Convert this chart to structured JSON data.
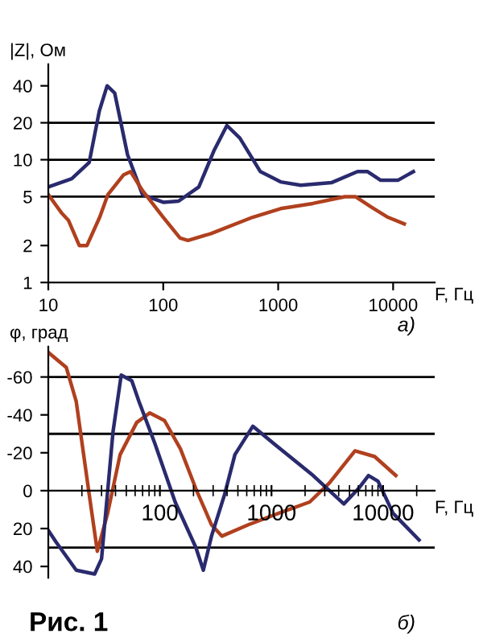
{
  "chart_data": [
    {
      "type": "line",
      "ylabel": "|Z|, Ом",
      "xlabel": "F, Гц",
      "log": "xy",
      "xlim": [
        10,
        23000
      ],
      "ylim": [
        1,
        60
      ],
      "xticks": [
        10,
        100,
        1000,
        10000
      ],
      "yticks": [
        1,
        2,
        5,
        10,
        20,
        40
      ],
      "grid": false,
      "legend": false,
      "marker": "none",
      "line_style": "solid",
      "series": [
        {
          "color": "#2a2a6e",
          "x": [
            10,
            16,
            22.7,
            27.8,
            32.5,
            37.8,
            48.9,
            66,
            100,
            136,
            204,
            278,
            358,
            464,
            700,
            1050,
            1570,
            2900,
            4900,
            6000,
            7800,
            11000,
            15000
          ],
          "values": [
            6,
            7,
            9.5,
            25,
            40,
            35,
            11,
            5.2,
            4.5,
            4.6,
            6,
            12,
            19,
            15,
            8,
            6.6,
            6.2,
            6.5,
            8,
            8,
            6.8,
            6.8,
            8
          ]
        },
        {
          "color": "#b0401e",
          "x": [
            10,
            13,
            15,
            18.6,
            21.7,
            28,
            33,
            45,
            52,
            66,
            100,
            140,
            164,
            260,
            600,
            1050,
            2000,
            3800,
            4700,
            6500,
            9000,
            12500
          ],
          "values": [
            5.2,
            3.7,
            3.2,
            2,
            2,
            3.4,
            5.2,
            7.5,
            8,
            5.6,
            3.4,
            2.3,
            2.2,
            2.5,
            3.4,
            4,
            4.4,
            5,
            5,
            4.1,
            3.4,
            3
          ]
        }
      ],
      "ref_lines": [
        {
          "axis": "y",
          "value": 20,
          "color": "#000000"
        },
        {
          "axis": "y",
          "value": 10,
          "color": "#000000"
        },
        {
          "axis": "y",
          "value": 5,
          "color": "#000000"
        }
      ],
      "annotations": [
        "а)"
      ]
    },
    {
      "type": "line",
      "ylabel": "φ, град",
      "xlabel": "F, Гц",
      "log": "x",
      "xlim": [
        10,
        29000
      ],
      "ylim": [
        46,
        -76
      ],
      "xticks": [
        100,
        1000,
        10000
      ],
      "yticks": [
        -60,
        -40,
        -20,
        0,
        20,
        40
      ],
      "grid": false,
      "legend": false,
      "marker": "none",
      "line_style": "solid",
      "series": [
        {
          "color": "#b0401e",
          "x": [
            10,
            14.5,
            17.8,
            23,
            27.5,
            34,
            44,
            62,
            81,
            110,
            153,
            210,
            290,
            360,
            620,
            1150,
            2200,
            3300,
            5600,
            8400,
            13000
          ],
          "values": [
            -73,
            -65,
            -47,
            0,
            32,
            12,
            -19,
            -36,
            -41,
            -37,
            -22,
            -1,
            18,
            24,
            18,
            12,
            6,
            -4,
            -21,
            -18,
            -8
          ]
        },
        {
          "color": "#2a2a6e",
          "x": [
            10,
            11.7,
            17.8,
            26,
            30,
            38,
            45,
            56,
            65,
            90,
            137,
            210,
            245,
            290,
            380,
            470,
            680,
            1040,
            2360,
            3600,
            4450,
            6000,
            7400,
            9000,
            12300,
            21000
          ],
          "values": [
            21,
            27,
            42,
            44,
            36,
            -31,
            -61,
            -58,
            -47,
            -25,
            6,
            30,
            42,
            24,
            2,
            -19,
            -34,
            -25,
            -8,
            2,
            7,
            -1,
            -8,
            -5,
            12,
            26
          ]
        }
      ],
      "ref_lines": [
        {
          "axis": "y",
          "value": -60,
          "color": "#000000"
        },
        {
          "axis": "y",
          "value": -30,
          "color": "#000000"
        },
        {
          "axis": "y",
          "value": 30,
          "color": "#000000"
        }
      ],
      "annotations": [
        "б)",
        "Рис. 1"
      ]
    }
  ]
}
